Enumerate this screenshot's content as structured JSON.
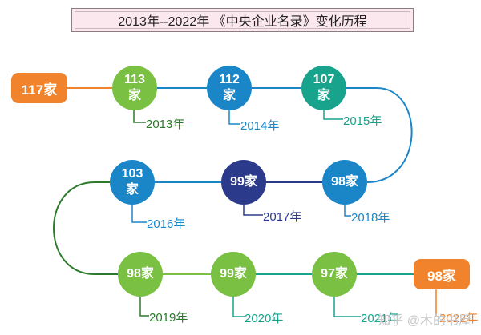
{
  "title": "2013年--2022年 《中央企业名录》变化历程",
  "colors": {
    "orange": "#f0832c",
    "light_green": "#79c043",
    "blue": "#1a86c8",
    "teal": "#18a38d",
    "navy": "#2c3a8c",
    "dark_green": "#2c7a2c"
  },
  "start_node": {
    "label": "117家"
  },
  "nodes": [
    {
      "line1": "113",
      "line2": "家",
      "year": "2013年"
    },
    {
      "line1": "112",
      "line2": "家",
      "year": "2014年"
    },
    {
      "line1": "107",
      "line2": "家",
      "year": "2015年"
    },
    {
      "line1": "98家",
      "line2": "",
      "year": "2018年"
    },
    {
      "line1": "99家",
      "line2": "",
      "year": "2017年"
    },
    {
      "line1": "103",
      "line2": "家",
      "year": "2016年"
    },
    {
      "line1": "98家",
      "line2": "",
      "year": "2019年"
    },
    {
      "line1": "99家",
      "line2": "",
      "year": "2020年"
    },
    {
      "line1": "97家",
      "line2": "",
      "year": "2021年"
    }
  ],
  "end_node": {
    "label": "98家",
    "year": "2022年"
  },
  "watermark": "知乎 @木的书屋"
}
